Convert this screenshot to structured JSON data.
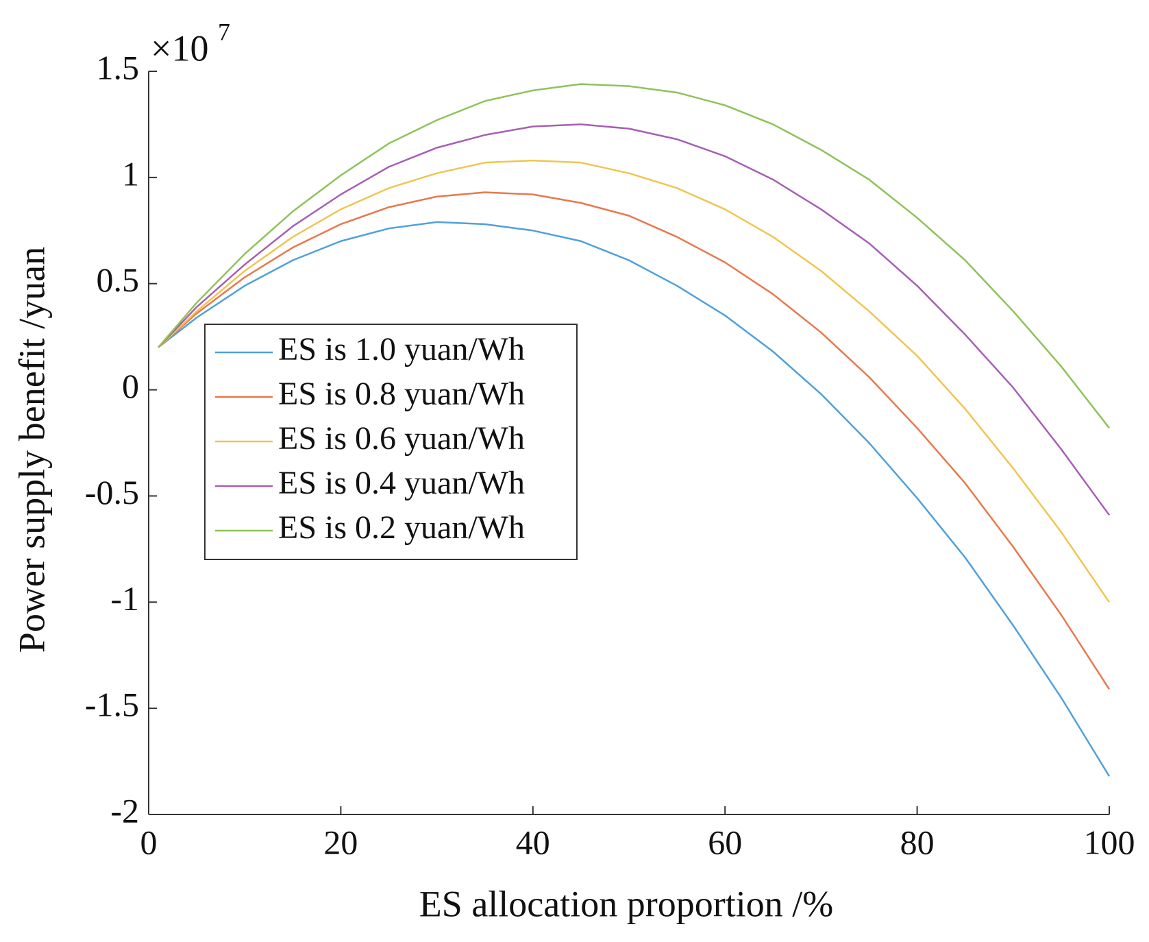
{
  "chart_data": {
    "type": "line",
    "xlabel": "ES allocation proportion /%",
    "ylabel": "Power supply benefit /yuan",
    "y_multiplier": "×10",
    "y_exponent": "7",
    "x": [
      1,
      5,
      10,
      15,
      20,
      25,
      30,
      35,
      40,
      45,
      50,
      55,
      60,
      65,
      70,
      75,
      80,
      85,
      90,
      95,
      100
    ],
    "series": [
      {
        "name": "ES is 1.0 yuan/Wh",
        "color": "#4fa0dc",
        "values": [
          0.2,
          0.34,
          0.49,
          0.61,
          0.7,
          0.76,
          0.79,
          0.78,
          0.75,
          0.7,
          0.61,
          0.49,
          0.35,
          0.18,
          -0.02,
          -0.25,
          -0.51,
          -0.79,
          -1.11,
          -1.45,
          -1.82
        ]
      },
      {
        "name": "ES is 0.8 yuan/Wh",
        "color": "#e8784c",
        "values": [
          0.2,
          0.36,
          0.53,
          0.67,
          0.78,
          0.86,
          0.91,
          0.93,
          0.92,
          0.88,
          0.82,
          0.72,
          0.6,
          0.45,
          0.27,
          0.06,
          -0.18,
          -0.44,
          -0.74,
          -1.06,
          -1.41
        ]
      },
      {
        "name": "ES is 0.6 yuan/Wh",
        "color": "#f0c550",
        "values": [
          0.2,
          0.37,
          0.56,
          0.72,
          0.85,
          0.95,
          1.02,
          1.07,
          1.08,
          1.07,
          1.02,
          0.95,
          0.85,
          0.72,
          0.56,
          0.37,
          0.16,
          -0.09,
          -0.37,
          -0.67,
          -1.0
        ]
      },
      {
        "name": "ES is 0.4 yuan/Wh",
        "color": "#a55fb4",
        "values": [
          0.2,
          0.39,
          0.59,
          0.77,
          0.92,
          1.05,
          1.14,
          1.2,
          1.24,
          1.25,
          1.23,
          1.18,
          1.1,
          0.99,
          0.85,
          0.69,
          0.49,
          0.26,
          0.01,
          -0.28,
          -0.59
        ]
      },
      {
        "name": "ES is 0.2 yuan/Wh",
        "color": "#8fc25a",
        "values": [
          0.2,
          0.41,
          0.64,
          0.84,
          1.01,
          1.16,
          1.27,
          1.36,
          1.41,
          1.44,
          1.43,
          1.4,
          1.34,
          1.25,
          1.13,
          0.99,
          0.81,
          0.61,
          0.37,
          0.11,
          -0.18
        ]
      }
    ],
    "xlim": [
      0,
      100
    ],
    "xticks": [
      0,
      20,
      40,
      60,
      80,
      100
    ],
    "ylim": [
      -2,
      1.5
    ],
    "yticks": [
      -2,
      -1.5,
      -1,
      -0.5,
      0,
      0.5,
      1,
      1.5
    ],
    "grid": false,
    "legend": "west"
  }
}
